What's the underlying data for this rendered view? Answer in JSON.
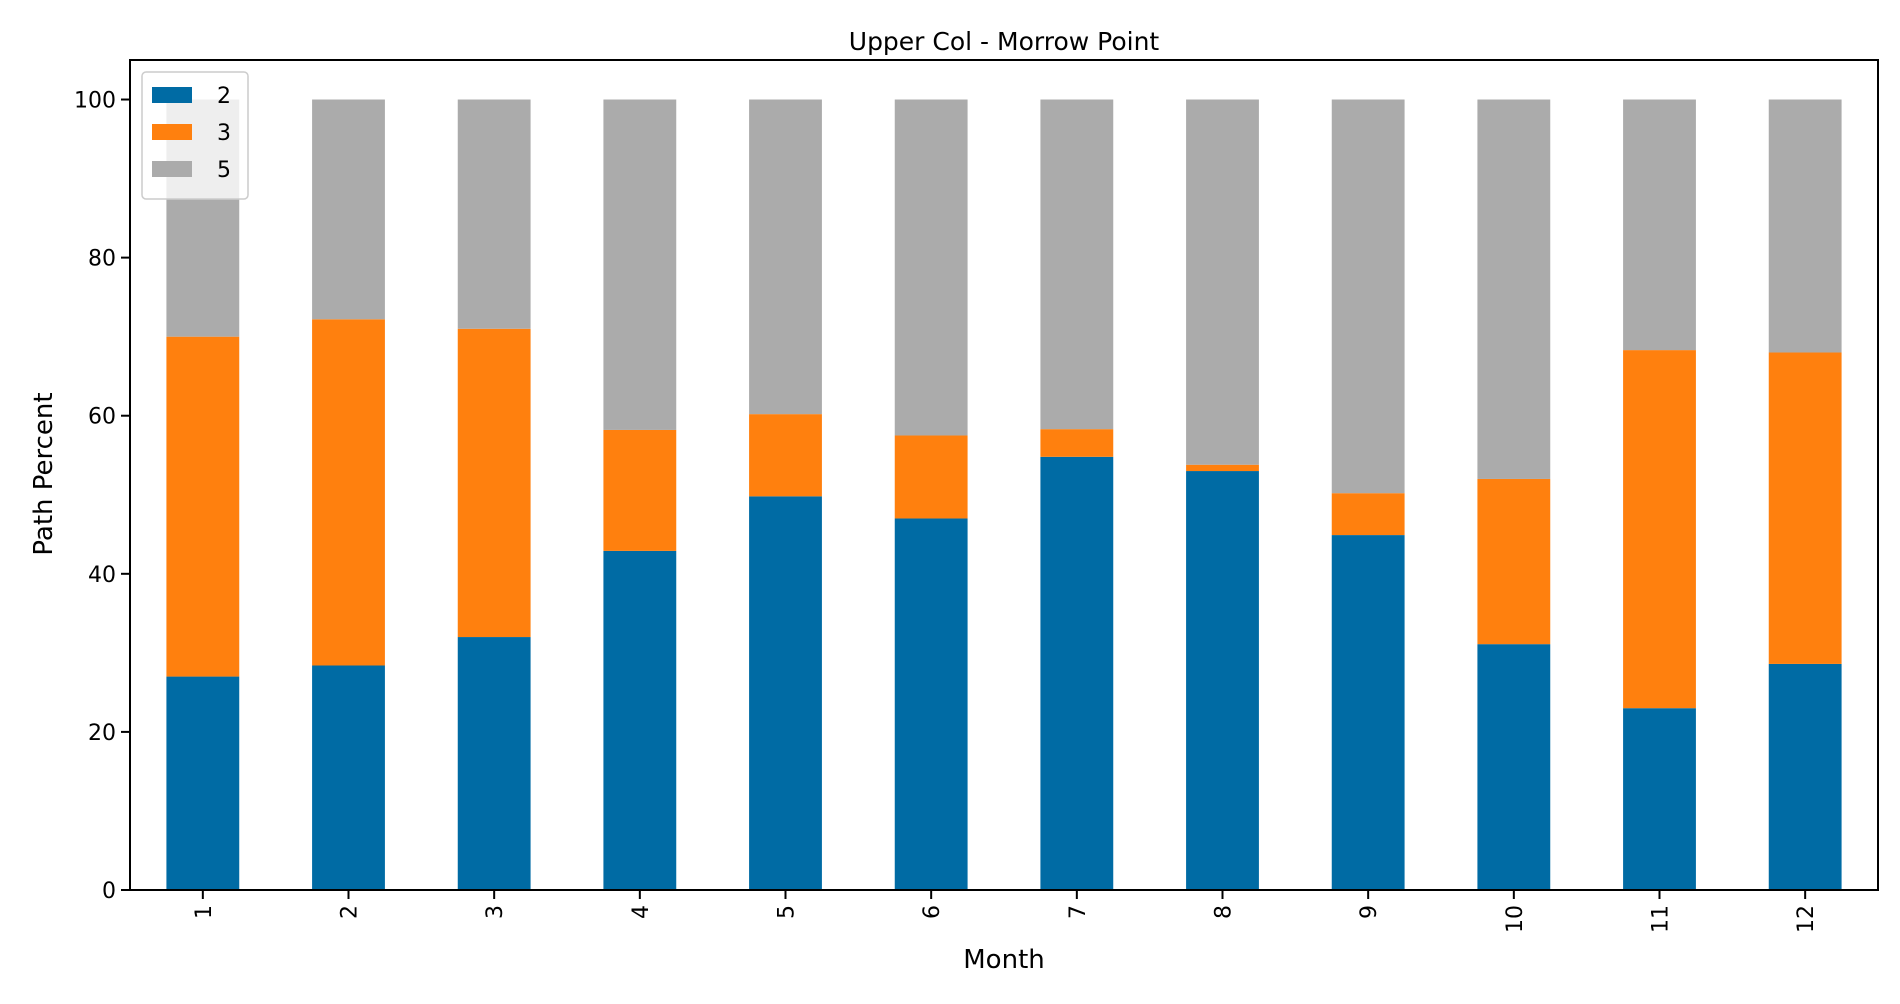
{
  "chart_data": {
    "type": "bar",
    "stacked": true,
    "title": "Upper Col - Morrow Point",
    "xlabel": "Month",
    "ylabel": "Path Percent",
    "categories": [
      "1",
      "2",
      "3",
      "4",
      "5",
      "6",
      "7",
      "8",
      "9",
      "10",
      "11",
      "12"
    ],
    "ylim": [
      0,
      105
    ],
    "yticks": [
      0,
      20,
      40,
      60,
      80,
      100
    ],
    "grid": false,
    "legend_position": "top-left",
    "series": [
      {
        "name": "2",
        "color": "#006BA4",
        "values": [
          27.0,
          28.4,
          32.0,
          42.9,
          49.8,
          47.0,
          54.8,
          53.0,
          44.9,
          31.1,
          23.0,
          28.6
        ]
      },
      {
        "name": "3",
        "color": "#FF800E",
        "values": [
          43.0,
          43.8,
          39.0,
          15.3,
          10.4,
          10.5,
          3.5,
          0.8,
          5.3,
          20.9,
          45.3,
          39.4
        ]
      },
      {
        "name": "5",
        "color": "#ABABAB",
        "values": [
          30.0,
          27.8,
          29.0,
          41.8,
          39.8,
          42.5,
          41.7,
          46.2,
          49.8,
          48.0,
          31.7,
          32.0
        ]
      }
    ]
  }
}
